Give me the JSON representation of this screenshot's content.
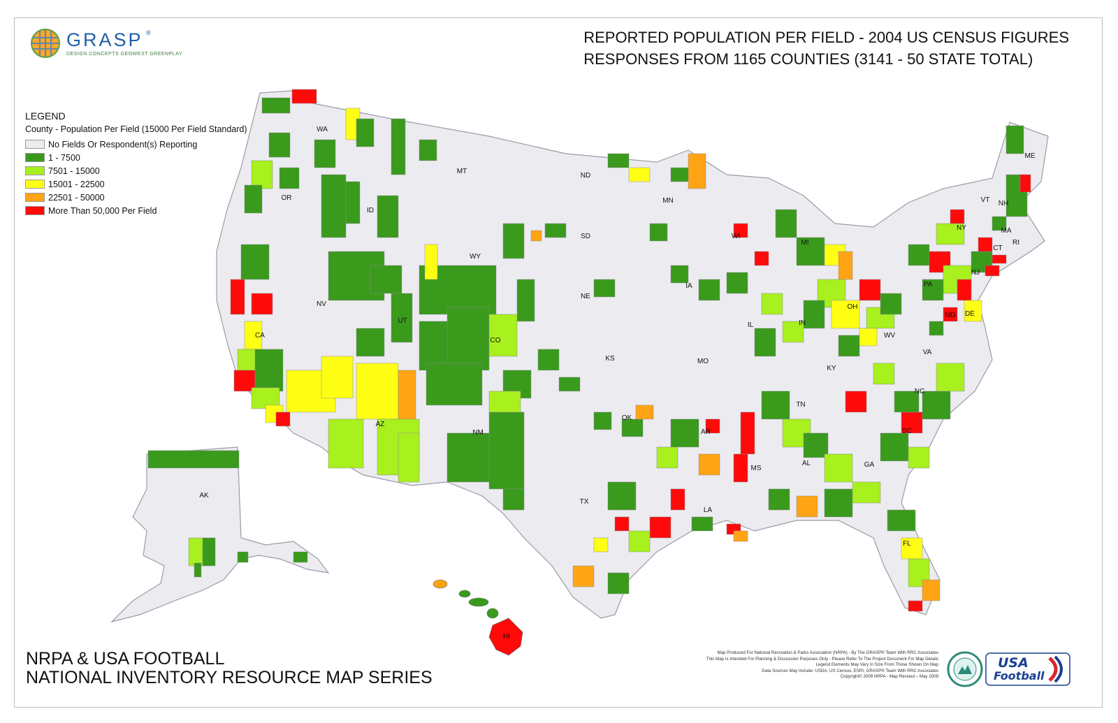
{
  "logo": {
    "text": "GRASP",
    "mark": "®",
    "tagline": "DESIGN CONCEPTS   GEOWEST   GREENPLAY"
  },
  "title": {
    "line1": "REPORTED POPULATION PER FIELD - 2004 US CENSUS FIGURES",
    "line2": "RESPONSES FROM 1165 COUNTIES (3141 - 50 STATE TOTAL)"
  },
  "legend": {
    "heading": "LEGEND",
    "subtitle": "County - Population Per Field (15000 Per Field Standard)",
    "items": [
      {
        "label": "No Fields Or Respondent(s) Reporting",
        "color": "#ececf0"
      },
      {
        "label": "1 - 7500",
        "color": "#3a9a1c"
      },
      {
        "label": "7501 - 15000",
        "color": "#a8f01e"
      },
      {
        "label": "15001 - 22500",
        "color": "#ffff14"
      },
      {
        "label": "22501 - 50000",
        "color": "#ffa414"
      },
      {
        "label": "More Than 50,000 Per Field",
        "color": "#ff0a0a"
      }
    ]
  },
  "state_labels": [
    "WA",
    "OR",
    "ID",
    "MT",
    "ND",
    "MN",
    "SD",
    "WY",
    "NV",
    "UT",
    "CO",
    "NE",
    "IA",
    "WI",
    "MI",
    "IL",
    "IN",
    "OH",
    "KS",
    "MO",
    "KY",
    "CA",
    "AZ",
    "NM",
    "OK",
    "AR",
    "TN",
    "TX",
    "LA",
    "MS",
    "AL",
    "GA",
    "SC",
    "NC",
    "VA",
    "WV",
    "PA",
    "NY",
    "ME",
    "VT",
    "NH",
    "MA",
    "CT",
    "RI",
    "NJ",
    "DE",
    "MD",
    "FL",
    "AK",
    "HI"
  ],
  "series_title": {
    "line1": "NRPA & USA FOOTBALL",
    "line2": "NATIONAL INVENTORY RESOURCE MAP SERIES"
  },
  "credits": [
    "Map Produced For National Recreation & Parks Association (NRPA) - By The GRASP® Team With RRC Associates",
    "This Map Is Intended For Planning & Discussion Purposes Only - Please Refer To The Project Document For Map Details",
    "Legend Elements May Vary In Size From Those Shown On Map",
    "Data Sources May Include: USDA, US Census, ESRI, GRASP® Team With RRC Associates",
    "Copyright© 2009 NRPA - Map Revised – May 2009"
  ],
  "usa_football_logo": {
    "line1": "USA",
    "line2": "Football"
  }
}
